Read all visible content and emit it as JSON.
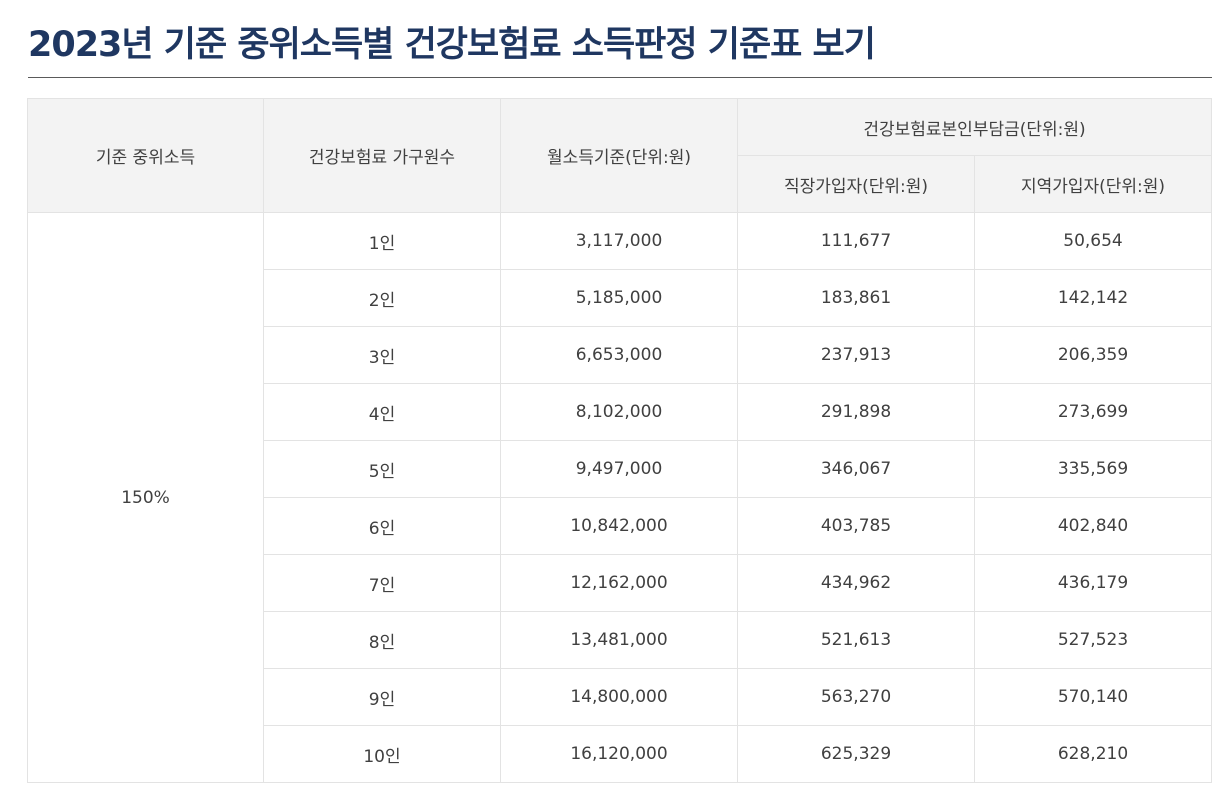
{
  "title": "2023년 기준 중위소득별 건강보험료 소득판정 기준표 보기",
  "table": {
    "headers": {
      "median_income": "기준 중위소득",
      "household_size": "건강보험료 가구원수",
      "monthly_income": "월소득기준(단위:원)",
      "premium_group": "건강보험료본인부담금(단위:원)",
      "employee": "직장가입자(단위:원)",
      "regional": "지역가입자(단위:원)"
    },
    "median_income_value": "150%",
    "rows": [
      {
        "household": "1인",
        "monthly": "3,117,000",
        "employee": "111,677",
        "regional": "50,654"
      },
      {
        "household": "2인",
        "monthly": "5,185,000",
        "employee": "183,861",
        "regional": "142,142"
      },
      {
        "household": "3인",
        "monthly": "6,653,000",
        "employee": "237,913",
        "regional": "206,359"
      },
      {
        "household": "4인",
        "monthly": "8,102,000",
        "employee": "291,898",
        "regional": "273,699"
      },
      {
        "household": "5인",
        "monthly": "9,497,000",
        "employee": "346,067",
        "regional": "335,569"
      },
      {
        "household": "6인",
        "monthly": "10,842,000",
        "employee": "403,785",
        "regional": "402,840"
      },
      {
        "household": "7인",
        "monthly": "12,162,000",
        "employee": "434,962",
        "regional": "436,179"
      },
      {
        "household": "8인",
        "monthly": "13,481,000",
        "employee": "521,613",
        "regional": "527,523"
      },
      {
        "household": "9인",
        "monthly": "14,800,000",
        "employee": "563,270",
        "regional": "570,140"
      },
      {
        "household": "10인",
        "monthly": "16,120,000",
        "employee": "625,329",
        "regional": "628,210"
      }
    ]
  }
}
